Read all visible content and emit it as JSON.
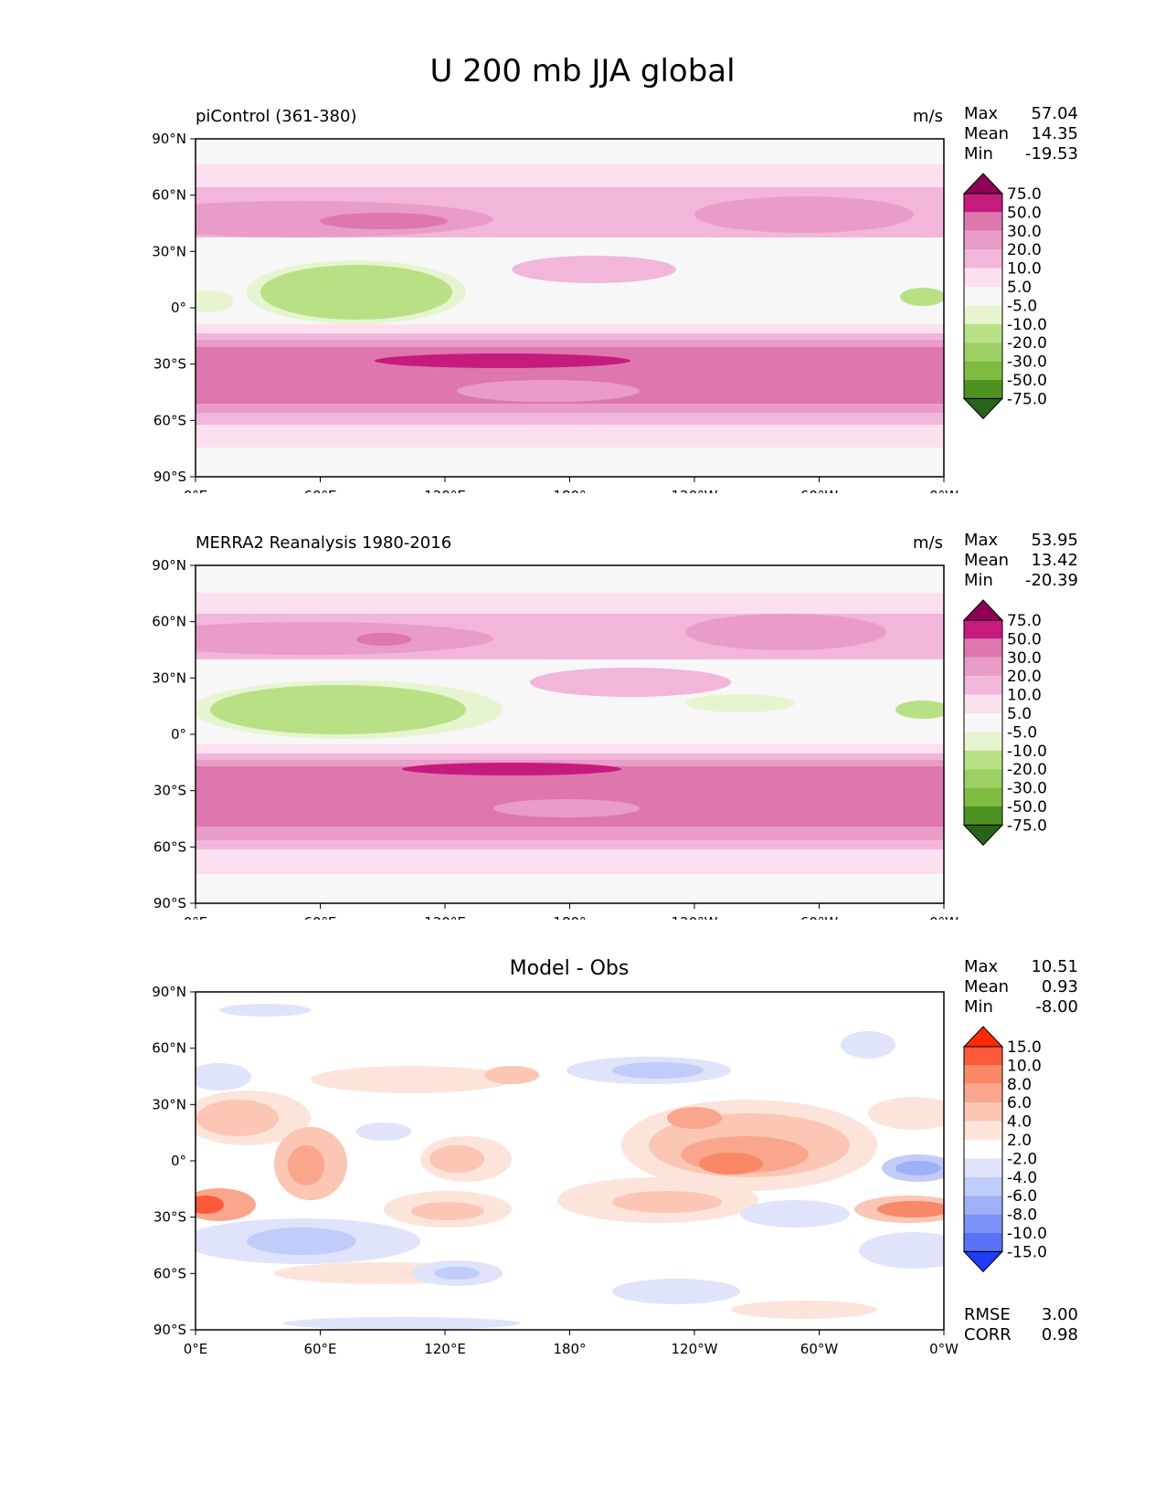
{
  "figure": {
    "title": "U 200 mb JJA global"
  },
  "axes": {
    "lon_ticks": [
      "0°E",
      "60°E",
      "120°E",
      "180°",
      "120°W",
      "60°W",
      "0°W"
    ],
    "lat_ticks": [
      "90°N",
      "60°N",
      "30°N",
      "0°",
      "30°S",
      "60°S",
      "90°S"
    ]
  },
  "panels": [
    {
      "title_left": "piControl (361-380)",
      "title_center": "",
      "units": "m/s",
      "stats": [
        {
          "label": "Max",
          "value": "57.04"
        },
        {
          "label": "Mean",
          "value": "14.35"
        },
        {
          "label": "Min",
          "value": "-19.53"
        }
      ],
      "colorbar": {
        "labels": [
          "75.0",
          "50.0",
          "30.0",
          "20.0",
          "10.0",
          "5.0",
          "-5.0",
          "-10.0",
          "-20.0",
          "-30.0",
          "-50.0",
          "-75.0"
        ],
        "colors": [
          "#8e0152",
          "#c51b7d",
          "#de77ae",
          "#e99cc8",
          "#f1b6da",
          "#fde0ef",
          "#f7f7f7",
          "#e6f5d0",
          "#b8e186",
          "#9cd064",
          "#7fbc41",
          "#4d9221",
          "#276419"
        ]
      }
    },
    {
      "title_left": "MERRA2 Reanalysis 1980-2016",
      "title_center": "",
      "units": "m/s",
      "stats": [
        {
          "label": "Max",
          "value": "53.95"
        },
        {
          "label": "Mean",
          "value": "13.42"
        },
        {
          "label": "Min",
          "value": "-20.39"
        }
      ],
      "colorbar": {
        "labels": [
          "75.0",
          "50.0",
          "30.0",
          "20.0",
          "10.0",
          "5.0",
          "-5.0",
          "-10.0",
          "-20.0",
          "-30.0",
          "-50.0",
          "-75.0"
        ],
        "colors": [
          "#8e0152",
          "#c51b7d",
          "#de77ae",
          "#e99cc8",
          "#f1b6da",
          "#fde0ef",
          "#f7f7f7",
          "#e6f5d0",
          "#b8e186",
          "#9cd064",
          "#7fbc41",
          "#4d9221",
          "#276419"
        ]
      }
    },
    {
      "title_left": "",
      "title_center": "Model - Obs",
      "units": "",
      "stats": [
        {
          "label": "Max",
          "value": "10.51"
        },
        {
          "label": "Mean",
          "value": "0.93"
        },
        {
          "label": "Min",
          "value": "-8.00"
        }
      ],
      "colorbar": {
        "labels": [
          "15.0",
          "10.0",
          "8.0",
          "6.0",
          "4.0",
          "2.0",
          "-2.0",
          "-4.0",
          "-6.0",
          "-8.0",
          "-10.0",
          "-15.0"
        ],
        "colors": [
          "#ff2a00",
          "#fc5a3a",
          "#f98866",
          "#f9a68c",
          "#fbc6b4",
          "#fde4da",
          "#ffffff",
          "#dfe4fb",
          "#c0ccf9",
          "#9fb0f7",
          "#7d92f6",
          "#5a72f8",
          "#1f3bff"
        ]
      },
      "footer": [
        {
          "label": "RMSE",
          "value": "3.00"
        },
        {
          "label": "CORR",
          "value": "0.98"
        }
      ]
    }
  ]
}
